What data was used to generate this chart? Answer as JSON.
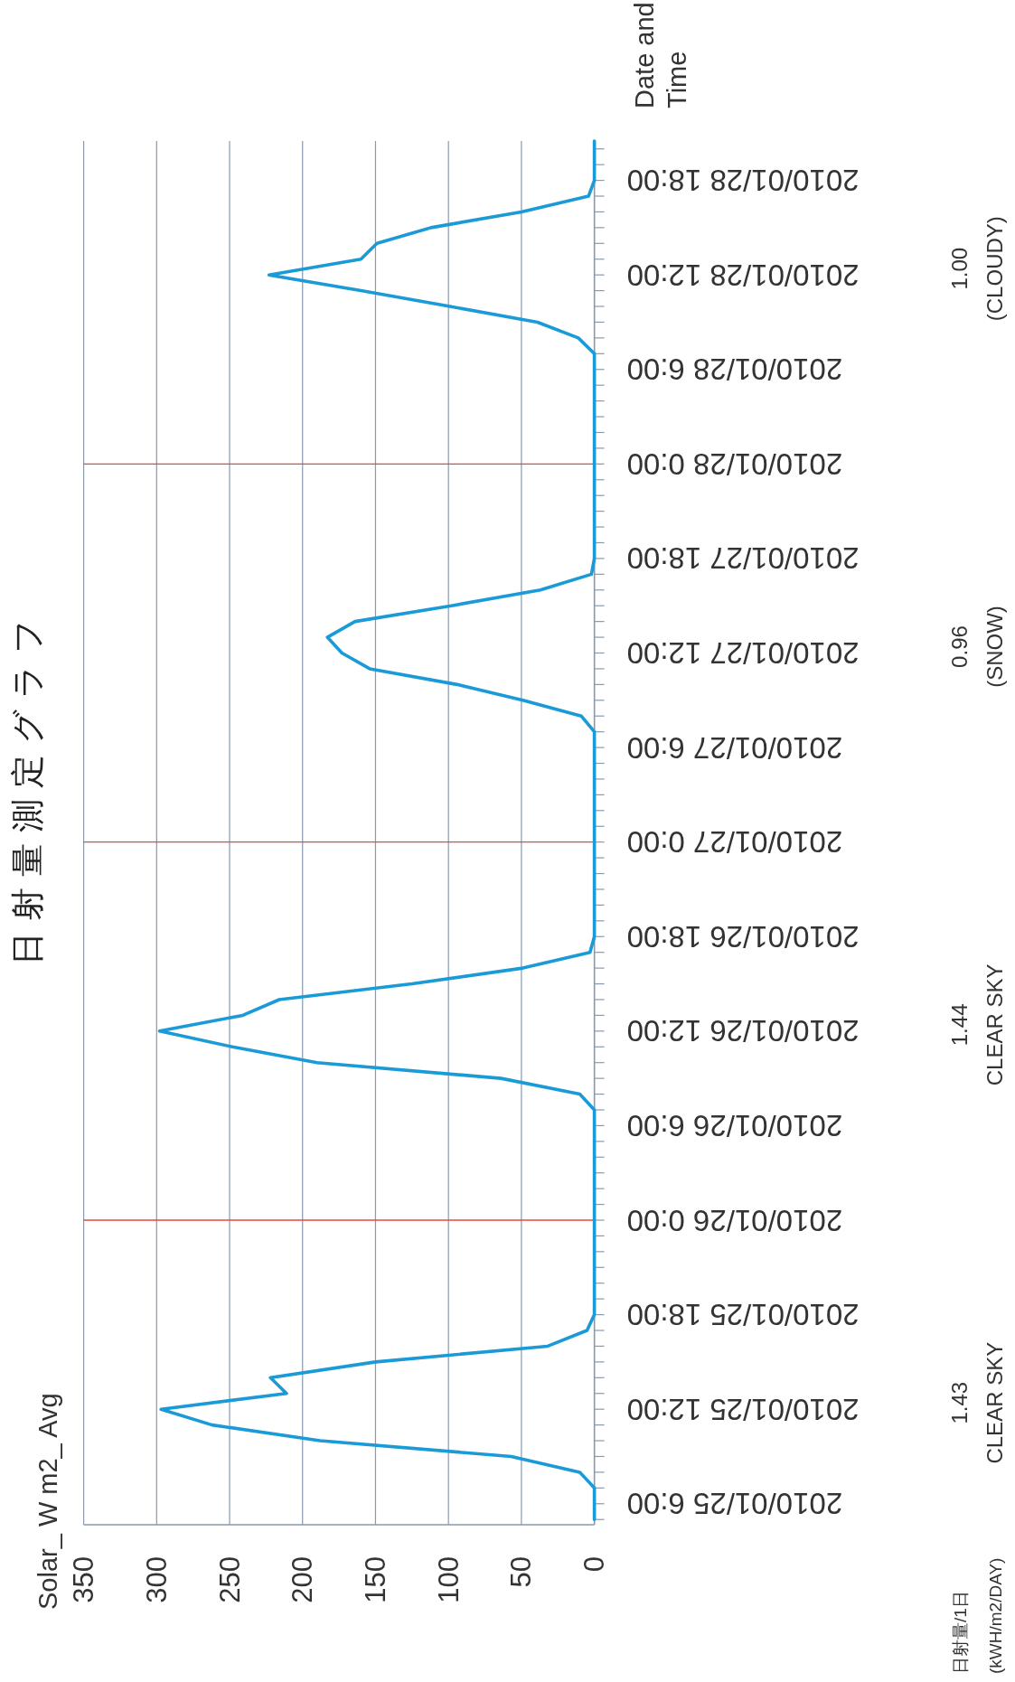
{
  "chart_data": {
    "type": "line",
    "orientation": "horizontal",
    "title": "日射量測定グラフ",
    "ylabel": "Date and Time",
    "x": [
      "2010-01-25T05:00",
      "2010-01-25T07:00",
      "2010-01-25T08:00",
      "2010-01-25T09:00",
      "2010-01-25T10:00",
      "2010-01-25T11:00",
      "2010-01-25T12:00",
      "2010-01-25T13:00",
      "2010-01-25T14:00",
      "2010-01-25T15:00",
      "2010-01-25T16:00",
      "2010-01-25T17:00",
      "2010-01-25T18:00",
      "2010-01-26T07:00",
      "2010-01-26T08:00",
      "2010-01-26T09:00",
      "2010-01-26T10:00",
      "2010-01-26T11:00",
      "2010-01-26T12:00",
      "2010-01-26T13:00",
      "2010-01-26T14:00",
      "2010-01-26T15:00",
      "2010-01-26T16:00",
      "2010-01-26T17:00",
      "2010-01-26T18:00",
      "2010-01-27T07:00",
      "2010-01-27T08:00",
      "2010-01-27T09:00",
      "2010-01-27T10:00",
      "2010-01-27T11:00",
      "2010-01-27T12:00",
      "2010-01-27T13:00",
      "2010-01-27T14:00",
      "2010-01-27T15:00",
      "2010-01-27T16:00",
      "2010-01-27T17:00",
      "2010-01-27T18:00",
      "2010-01-28T07:00",
      "2010-01-28T08:00",
      "2010-01-28T09:00",
      "2010-01-28T10:00",
      "2010-01-28T11:00",
      "2010-01-28T12:00",
      "2010-01-28T13:00",
      "2010-01-28T14:00",
      "2010-01-28T15:00",
      "2010-01-28T16:00",
      "2010-01-28T17:00",
      "2010-01-28T18:00",
      "2010-01-28T20:30"
    ],
    "series": [
      {
        "color": "#1a9ad6",
        "values": [
          0,
          0,
          10,
          57,
          188,
          262,
          297,
          211,
          222,
          150,
          32,
          5,
          0,
          0,
          10,
          64,
          190,
          248,
          298,
          241,
          216,
          125,
          49,
          3,
          0,
          0,
          9,
          49,
          94,
          154,
          173,
          183,
          164,
          98,
          37,
          2,
          0,
          0,
          11,
          39,
          99,
          160,
          223,
          160,
          149,
          112,
          50,
          4,
          0,
          0
        ]
      }
    ],
    "ylim": [
      "2010-01-25T04:40",
      "2010-01-28T20:30"
    ],
    "xlim": [
      350,
      0
    ],
    "xticks": [
      0,
      50,
      100,
      150,
      200,
      250,
      300,
      350
    ],
    "grid": "x",
    "marker": "none",
    "line_style": "solid",
    "ref_lines": [
      {
        "axis": "y",
        "value": "2010-01-26T00:00",
        "color": "#e8473f"
      },
      {
        "axis": "y",
        "value": "2010-01-27T00:00",
        "color": "#e8473f"
      },
      {
        "axis": "y",
        "value": "2010-01-28T00:00",
        "color": "#e8473f"
      }
    ],
    "annotations": [
      "日射量/1日",
      "(kWH/m2/DAY)",
      "1.43",
      "CLEAR SKY",
      "1.44",
      "CLEAR SKY",
      "0.96",
      "(SNOW)",
      "1.00",
      "(CLOUDY)",
      "Solar_ W m2_ Avg"
    ],
    "yticks": [
      {
        "value": "2010-01-25T05:00",
        "label": null
      },
      {
        "value": "2010-01-25T06:00",
        "label": "2010/01/25 6:00"
      },
      {
        "value": "2010-01-25T07:00",
        "label": null
      },
      {
        "value": "2010-01-25T08:00",
        "label": null
      },
      {
        "value": "2010-01-25T09:00",
        "label": null
      },
      {
        "value": "2010-01-25T10:00",
        "label": null
      },
      {
        "value": "2010-01-25T11:00",
        "label": null
      },
      {
        "value": "2010-01-25T12:00",
        "label": "2010/01/25 12:00"
      },
      {
        "value": "2010-01-25T13:00",
        "label": null
      },
      {
        "value": "2010-01-25T14:00",
        "label": null
      },
      {
        "value": "2010-01-25T15:00",
        "label": null
      },
      {
        "value": "2010-01-25T16:00",
        "label": null
      },
      {
        "value": "2010-01-25T17:00",
        "label": null
      },
      {
        "value": "2010-01-25T18:00",
        "label": "2010/01/25 18:00"
      },
      {
        "value": "2010-01-25T19:00",
        "label": null
      },
      {
        "value": "2010-01-25T20:00",
        "label": null
      },
      {
        "value": "2010-01-25T21:00",
        "label": null
      },
      {
        "value": "2010-01-25T22:00",
        "label": null
      },
      {
        "value": "2010-01-25T23:00",
        "label": null
      },
      {
        "value": "2010-01-26T00:00",
        "label": "2010/01/26 0:00"
      },
      {
        "value": "2010-01-26T01:00",
        "label": null
      },
      {
        "value": "2010-01-26T02:00",
        "label": null
      },
      {
        "value": "2010-01-26T03:00",
        "label": null
      },
      {
        "value": "2010-01-26T04:00",
        "label": null
      },
      {
        "value": "2010-01-26T05:00",
        "label": null
      },
      {
        "value": "2010-01-26T06:00",
        "label": "2010/01/26 6:00"
      },
      {
        "value": "2010-01-26T07:00",
        "label": null
      },
      {
        "value": "2010-01-26T08:00",
        "label": null
      },
      {
        "value": "2010-01-26T09:00",
        "label": null
      },
      {
        "value": "2010-01-26T10:00",
        "label": null
      },
      {
        "value": "2010-01-26T11:00",
        "label": null
      },
      {
        "value": "2010-01-26T12:00",
        "label": "2010/01/26 12:00"
      },
      {
        "value": "2010-01-26T13:00",
        "label": null
      },
      {
        "value": "2010-01-26T14:00",
        "label": null
      },
      {
        "value": "2010-01-26T15:00",
        "label": null
      },
      {
        "value": "2010-01-26T16:00",
        "label": null
      },
      {
        "value": "2010-01-26T17:00",
        "label": null
      },
      {
        "value": "2010-01-26T18:00",
        "label": "2010/01/26 18:00"
      },
      {
        "value": "2010-01-26T19:00",
        "label": null
      },
      {
        "value": "2010-01-26T20:00",
        "label": null
      },
      {
        "value": "2010-01-26T21:00",
        "label": null
      },
      {
        "value": "2010-01-26T22:00",
        "label": null
      },
      {
        "value": "2010-01-26T23:00",
        "label": null
      },
      {
        "value": "2010-01-27T00:00",
        "label": "2010/01/27 0:00"
      },
      {
        "value": "2010-01-27T01:00",
        "label": null
      },
      {
        "value": "2010-01-27T02:00",
        "label": null
      },
      {
        "value": "2010-01-27T03:00",
        "label": null
      },
      {
        "value": "2010-01-27T04:00",
        "label": null
      },
      {
        "value": "2010-01-27T05:00",
        "label": null
      },
      {
        "value": "2010-01-27T06:00",
        "label": "2010/01/27 6:00"
      },
      {
        "value": "2010-01-27T07:00",
        "label": null
      },
      {
        "value": "2010-01-27T08:00",
        "label": null
      },
      {
        "value": "2010-01-27T09:00",
        "label": null
      },
      {
        "value": "2010-01-27T10:00",
        "label": null
      },
      {
        "value": "2010-01-27T11:00",
        "label": null
      },
      {
        "value": "2010-01-27T12:00",
        "label": "2010/01/27 12:00"
      },
      {
        "value": "2010-01-27T13:00",
        "label": null
      },
      {
        "value": "2010-01-27T14:00",
        "label": null
      },
      {
        "value": "2010-01-27T15:00",
        "label": null
      },
      {
        "value": "2010-01-27T16:00",
        "label": null
      },
      {
        "value": "2010-01-27T17:00",
        "label": null
      },
      {
        "value": "2010-01-27T18:00",
        "label": "2010/01/27 18:00"
      },
      {
        "value": "2010-01-27T19:00",
        "label": null
      },
      {
        "value": "2010-01-27T20:00",
        "label": null
      },
      {
        "value": "2010-01-27T21:00",
        "label": null
      },
      {
        "value": "2010-01-27T22:00",
        "label": null
      },
      {
        "value": "2010-01-27T23:00",
        "label": null
      },
      {
        "value": "2010-01-28T00:00",
        "label": "2010/01/28 0:00"
      },
      {
        "value": "2010-01-28T01:00",
        "label": null
      },
      {
        "value": "2010-01-28T02:00",
        "label": null
      },
      {
        "value": "2010-01-28T03:00",
        "label": null
      },
      {
        "value": "2010-01-28T04:00",
        "label": null
      },
      {
        "value": "2010-01-28T05:00",
        "label": null
      },
      {
        "value": "2010-01-28T06:00",
        "label": "2010/01/28 6:00"
      },
      {
        "value": "2010-01-28T07:00",
        "label": null
      },
      {
        "value": "2010-01-28T08:00",
        "label": null
      },
      {
        "value": "2010-01-28T09:00",
        "label": null
      },
      {
        "value": "2010-01-28T10:00",
        "label": null
      },
      {
        "value": "2010-01-28T11:00",
        "label": null
      },
      {
        "value": "2010-01-28T12:00",
        "label": "2010/01/28 12:00"
      },
      {
        "value": "2010-01-28T13:00",
        "label": null
      },
      {
        "value": "2010-01-28T14:00",
        "label": null
      },
      {
        "value": "2010-01-28T15:00",
        "label": null
      },
      {
        "value": "2010-01-28T16:00",
        "label": null
      },
      {
        "value": "2010-01-28T17:00",
        "label": null
      },
      {
        "value": "2010-01-28T18:00",
        "label": "2010/01/28 18:00"
      },
      {
        "value": "2010-01-28T19:00",
        "label": null
      },
      {
        "value": "2010-01-28T20:00",
        "label": null
      }
    ]
  }
}
